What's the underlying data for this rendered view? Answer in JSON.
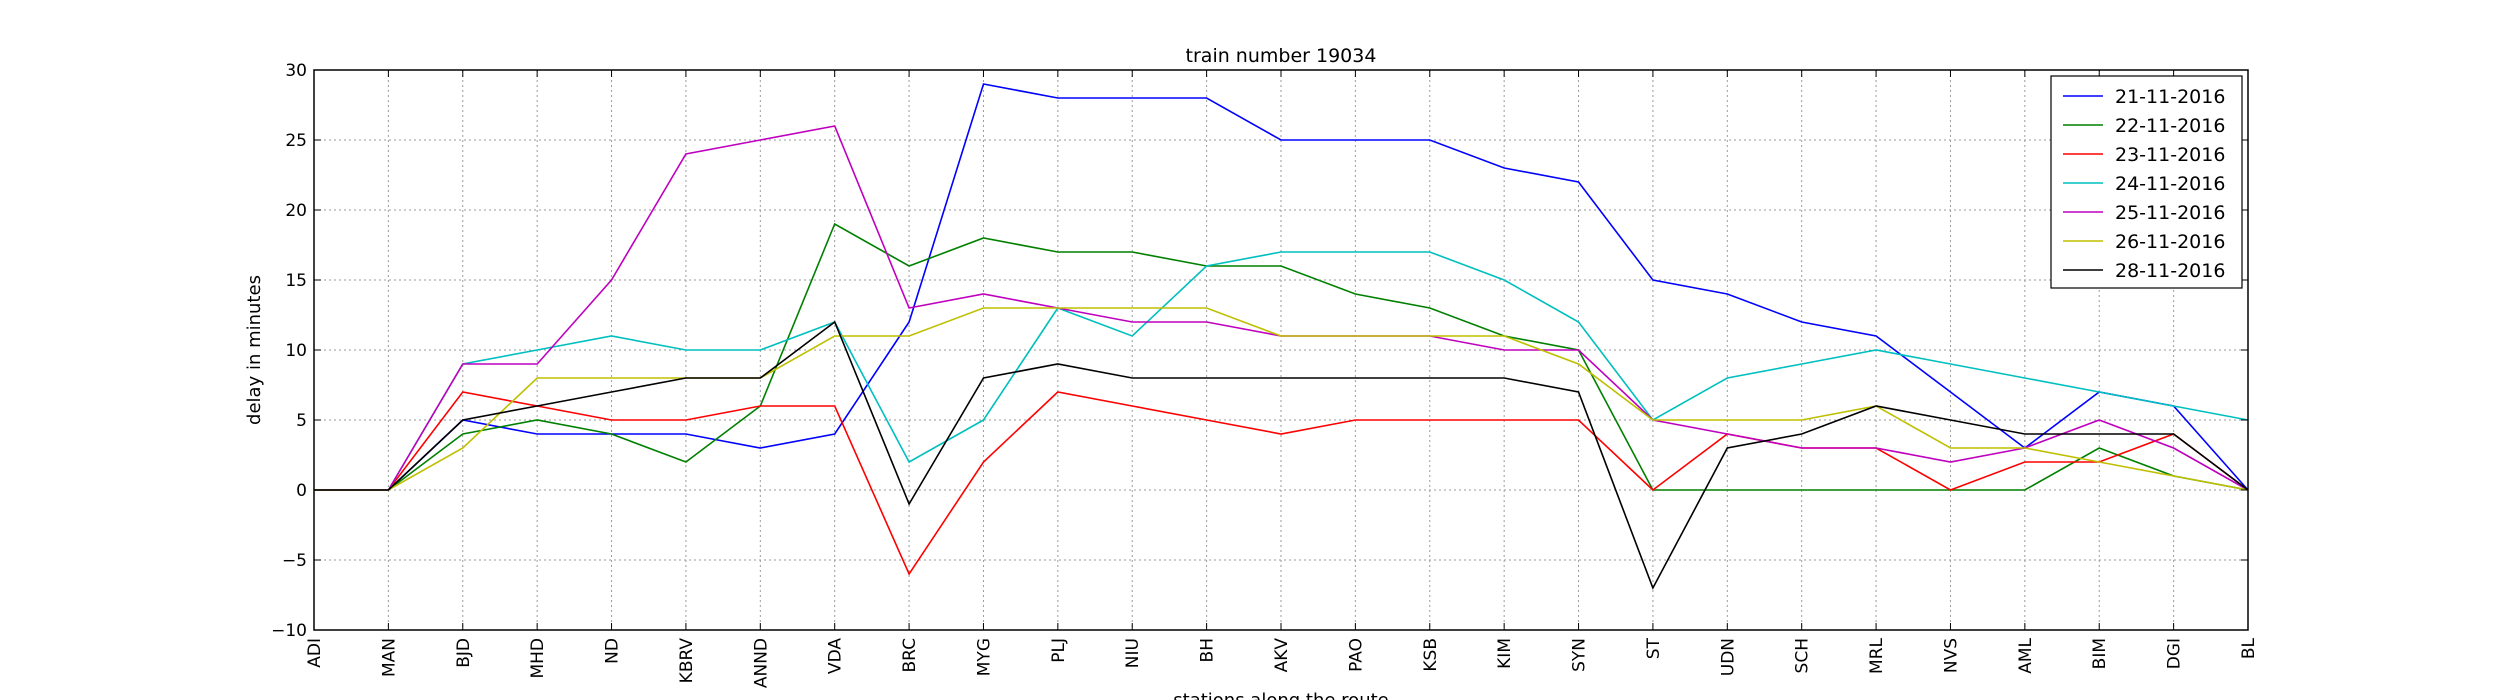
{
  "chart_data": {
    "type": "line",
    "title": "train number 19034",
    "xlabel": "stations along the route",
    "ylabel": "delay in minutes",
    "ylim": [
      -10,
      30
    ],
    "yticks": [
      -10,
      -5,
      0,
      5,
      10,
      15,
      20,
      25,
      30
    ],
    "ytick_labels": [
      "−10",
      "−5",
      "0",
      "5",
      "10",
      "15",
      "20",
      "25",
      "30"
    ],
    "grid": true,
    "legend_position": "top-right",
    "categories": [
      "ADI",
      "MAN",
      "BJD",
      "MHD",
      "ND",
      "KBRV",
      "ANND",
      "VDA",
      "BRC",
      "MYG",
      "PLJ",
      "NIU",
      "BH",
      "AKV",
      "PAO",
      "KSB",
      "KIM",
      "SYN",
      "ST",
      "UDN",
      "SCH",
      "MRL",
      "NVS",
      "AML",
      "BIM",
      "DGI",
      "BL"
    ],
    "series": [
      {
        "name": "21-11-2016",
        "color": "#0000ff",
        "values": [
          0,
          0,
          5,
          4,
          4,
          4,
          3,
          4,
          12,
          29,
          28,
          28,
          28,
          25,
          25,
          25,
          23,
          22,
          15,
          14,
          12,
          11,
          7,
          3,
          7,
          6,
          0
        ]
      },
      {
        "name": "22-11-2016",
        "color": "#008000",
        "values": [
          0,
          0,
          4,
          5,
          4,
          2,
          6,
          19,
          16,
          18,
          17,
          17,
          16,
          16,
          14,
          13,
          11,
          10,
          0,
          0,
          0,
          0,
          0,
          0,
          3,
          1,
          0
        ]
      },
      {
        "name": "23-11-2016",
        "color": "#ff0000",
        "values": [
          0,
          0,
          7,
          6,
          5,
          5,
          6,
          6,
          -6,
          2,
          7,
          6,
          5,
          4,
          5,
          5,
          5,
          5,
          0,
          4,
          3,
          3,
          0,
          2,
          2,
          4,
          0
        ]
      },
      {
        "name": "24-11-2016",
        "color": "#00bfbf",
        "values": [
          0,
          0,
          9,
          10,
          11,
          10,
          10,
          12,
          2,
          5,
          13,
          11,
          16,
          17,
          17,
          17,
          15,
          12,
          5,
          8,
          9,
          10,
          9,
          8,
          7,
          6,
          5
        ]
      },
      {
        "name": "25-11-2016",
        "color": "#bf00bf",
        "values": [
          0,
          0,
          9,
          9,
          15,
          24,
          25,
          26,
          13,
          14,
          13,
          12,
          12,
          11,
          11,
          11,
          10,
          10,
          5,
          4,
          3,
          3,
          2,
          3,
          5,
          3,
          0
        ]
      },
      {
        "name": "26-11-2016",
        "color": "#bfbf00",
        "values": [
          0,
          0,
          3,
          8,
          8,
          8,
          8,
          11,
          11,
          13,
          13,
          13,
          13,
          11,
          11,
          11,
          11,
          9,
          5,
          5,
          5,
          6,
          3,
          3,
          2,
          1,
          0
        ]
      },
      {
        "name": "28-11-2016",
        "color": "#000000",
        "values": [
          0,
          0,
          5,
          6,
          7,
          8,
          8,
          12,
          -1,
          8,
          9,
          8,
          8,
          8,
          8,
          8,
          8,
          7,
          -7,
          3,
          4,
          6,
          5,
          4,
          4,
          4,
          0
        ]
      }
    ]
  }
}
